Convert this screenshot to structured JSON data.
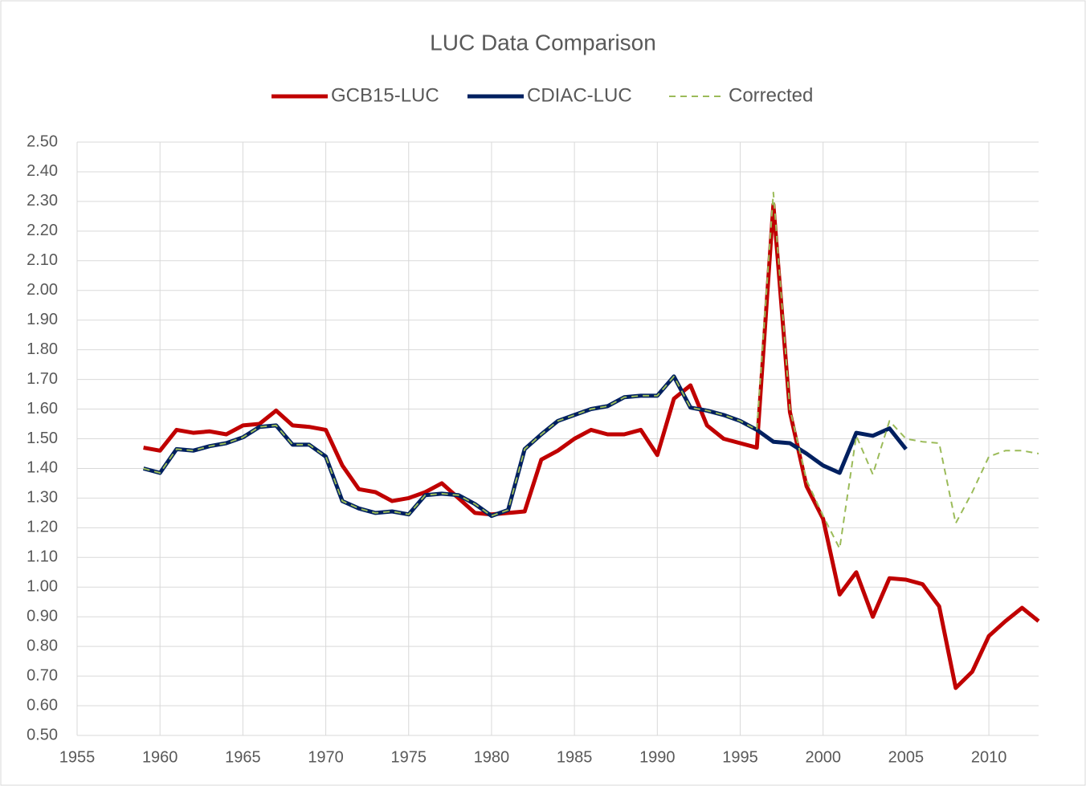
{
  "chart_data": {
    "type": "line",
    "title": "LUC Data Comparison",
    "x": [
      1959,
      1960,
      1961,
      1962,
      1963,
      1964,
      1965,
      1966,
      1967,
      1968,
      1969,
      1970,
      1971,
      1972,
      1973,
      1974,
      1975,
      1976,
      1977,
      1978,
      1979,
      1980,
      1981,
      1982,
      1983,
      1984,
      1985,
      1986,
      1987,
      1988,
      1989,
      1990,
      1991,
      1992,
      1993,
      1994,
      1995,
      1996,
      1997,
      1998,
      1999,
      2000,
      2001,
      2002,
      2003,
      2004,
      2005,
      2006,
      2007,
      2008,
      2009,
      2010,
      2011,
      2012,
      2013
    ],
    "series": [
      {
        "name": "GCB15-LUC",
        "color": "#c00000",
        "width": 5,
        "dashed": false,
        "values": [
          1.47,
          1.46,
          1.53,
          1.52,
          1.525,
          1.515,
          1.545,
          1.55,
          1.595,
          1.545,
          1.54,
          1.53,
          1.41,
          1.33,
          1.32,
          1.29,
          1.3,
          1.32,
          1.35,
          1.3,
          1.25,
          1.245,
          1.25,
          1.255,
          1.43,
          1.46,
          1.5,
          1.53,
          1.515,
          1.515,
          1.53,
          1.445,
          1.635,
          1.68,
          1.545,
          1.5,
          1.485,
          1.47,
          2.29,
          1.59,
          1.34,
          1.23,
          0.975,
          1.05,
          0.9,
          1.03,
          1.025,
          1.01,
          0.935,
          0.66,
          0.715,
          0.835,
          0.885,
          0.93,
          0.885
        ]
      },
      {
        "name": "CDIAC-LUC",
        "color": "#002060",
        "width": 5,
        "dashed": false,
        "values": [
          1.4,
          1.385,
          1.465,
          1.46,
          1.475,
          1.485,
          1.505,
          1.54,
          1.545,
          1.48,
          1.48,
          1.44,
          1.29,
          1.265,
          1.25,
          1.255,
          1.245,
          1.31,
          1.315,
          1.31,
          1.28,
          1.24,
          1.26,
          1.465,
          1.515,
          1.56,
          1.58,
          1.6,
          1.61,
          1.64,
          1.645,
          1.645,
          1.71,
          1.605,
          1.595,
          1.58,
          1.56,
          1.53,
          1.49,
          1.485,
          1.45,
          1.41,
          1.385,
          1.52,
          1.51,
          1.535,
          1.465,
          null,
          null,
          null,
          null,
          null,
          null,
          null,
          null
        ]
      },
      {
        "name": "Corrected",
        "color": "#9bbb59",
        "width": 2,
        "dashed": true,
        "values": [
          1.4,
          1.385,
          1.465,
          1.46,
          1.475,
          1.485,
          1.505,
          1.54,
          1.545,
          1.48,
          1.48,
          1.44,
          1.29,
          1.265,
          1.25,
          1.255,
          1.245,
          1.31,
          1.315,
          1.31,
          1.28,
          1.24,
          1.26,
          1.465,
          1.515,
          1.56,
          1.58,
          1.6,
          1.61,
          1.64,
          1.645,
          1.645,
          1.71,
          1.605,
          1.595,
          1.58,
          1.56,
          1.53,
          2.33,
          1.6,
          1.36,
          1.24,
          1.13,
          1.51,
          1.38,
          1.56,
          1.5,
          1.49,
          1.485,
          1.215,
          1.32,
          1.44,
          1.46,
          1.46,
          1.45
        ]
      }
    ],
    "xlim": [
      1955,
      2013
    ],
    "xticks": [
      1955,
      1960,
      1965,
      1970,
      1975,
      1980,
      1985,
      1990,
      1995,
      2000,
      2005,
      2010
    ],
    "ylim": [
      0.5,
      2.5
    ],
    "yticks": [
      {
        "value": 0.5,
        "label": "0.50"
      },
      {
        "value": 0.6,
        "label": "0.60"
      },
      {
        "value": 0.7,
        "label": "0.70"
      },
      {
        "value": 0.8,
        "label": "0.80"
      },
      {
        "value": 0.9,
        "label": "0.90"
      },
      {
        "value": 1.0,
        "label": "1.00"
      },
      {
        "value": 1.1,
        "label": "1.10"
      },
      {
        "value": 1.2,
        "label": "1.20"
      },
      {
        "value": 1.3,
        "label": "1.30"
      },
      {
        "value": 1.4,
        "label": "1.40"
      },
      {
        "value": 1.5,
        "label": "1.50"
      },
      {
        "value": 1.6,
        "label": "1.60"
      },
      {
        "value": 1.7,
        "label": "1.70"
      },
      {
        "value": 1.8,
        "label": "1.80"
      },
      {
        "value": 1.9,
        "label": "1.90"
      },
      {
        "value": 2.0,
        "label": "2.00"
      },
      {
        "value": 2.1,
        "label": "2.10"
      },
      {
        "value": 2.2,
        "label": "2.20"
      },
      {
        "value": 2.3,
        "label": "2.30"
      },
      {
        "value": 2.4,
        "label": "2.40"
      },
      {
        "value": 2.5,
        "label": "2.50"
      }
    ],
    "grid": true,
    "legend": "top"
  }
}
